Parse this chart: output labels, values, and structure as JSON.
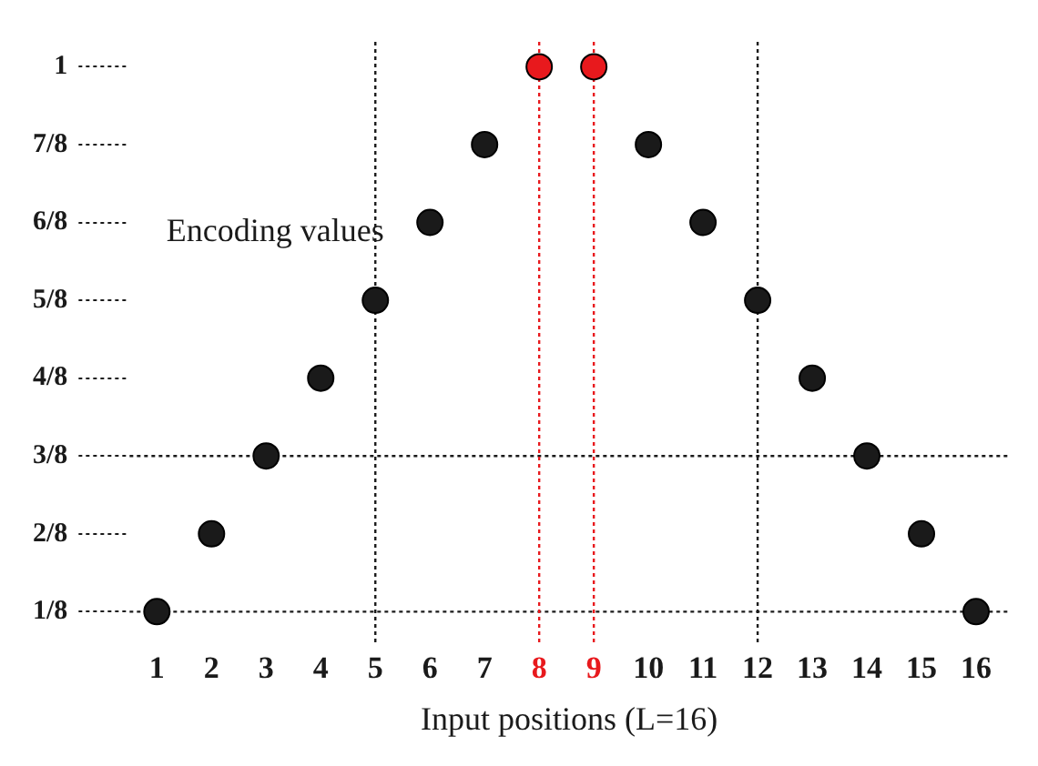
{
  "chart_data": {
    "type": "scatter",
    "xlabel": "Input positions (L=16)",
    "ylabel": "Encoding values",
    "series": [
      {
        "color": "#1a1a1a",
        "x": [
          1,
          2,
          3,
          4,
          5,
          6,
          7,
          10,
          11,
          12,
          13,
          14,
          15,
          16
        ],
        "values": [
          0.125,
          0.25,
          0.375,
          0.5,
          0.625,
          0.75,
          0.875,
          0.875,
          0.75,
          0.625,
          0.5,
          0.375,
          0.25,
          0.125
        ]
      },
      {
        "color": "#e8191d",
        "x": [
          8,
          9
        ],
        "values": [
          1,
          1
        ]
      }
    ],
    "xlim": [
      0.5,
      16.6
    ],
    "xticks": [
      1,
      2,
      3,
      4,
      5,
      6,
      7,
      8,
      9,
      10,
      11,
      12,
      13,
      14,
      15,
      16
    ],
    "ylim": [
      0.07,
      1.04
    ],
    "yticks": [
      {
        "value": 0.125,
        "label": "1/8"
      },
      {
        "value": 0.25,
        "label": "2/8"
      },
      {
        "value": 0.375,
        "label": "3/8"
      },
      {
        "value": 0.5,
        "label": "4/8"
      },
      {
        "value": 0.625,
        "label": "5/8"
      },
      {
        "value": 0.75,
        "label": "6/8"
      },
      {
        "value": 0.875,
        "label": "7/8"
      },
      {
        "value": 1,
        "label": "1"
      }
    ],
    "ref_lines": [
      {
        "axis": "y",
        "value": 0.125,
        "color": "#1a1a1a",
        "line_style": "dotted"
      },
      {
        "axis": "y",
        "value": 0.375,
        "color": "#1a1a1a",
        "line_style": "dotted"
      },
      {
        "axis": "x",
        "value": 5,
        "color": "#1a1a1a",
        "line_style": "dotted"
      },
      {
        "axis": "x",
        "value": 12,
        "color": "#1a1a1a",
        "line_style": "dotted"
      },
      {
        "axis": "x",
        "value": 8,
        "color": "#e8191d",
        "line_style": "dotted"
      },
      {
        "axis": "x",
        "value": 9,
        "color": "#e8191d",
        "line_style": "dotted"
      }
    ],
    "marker": "circle",
    "grid": false,
    "legend": false
  }
}
